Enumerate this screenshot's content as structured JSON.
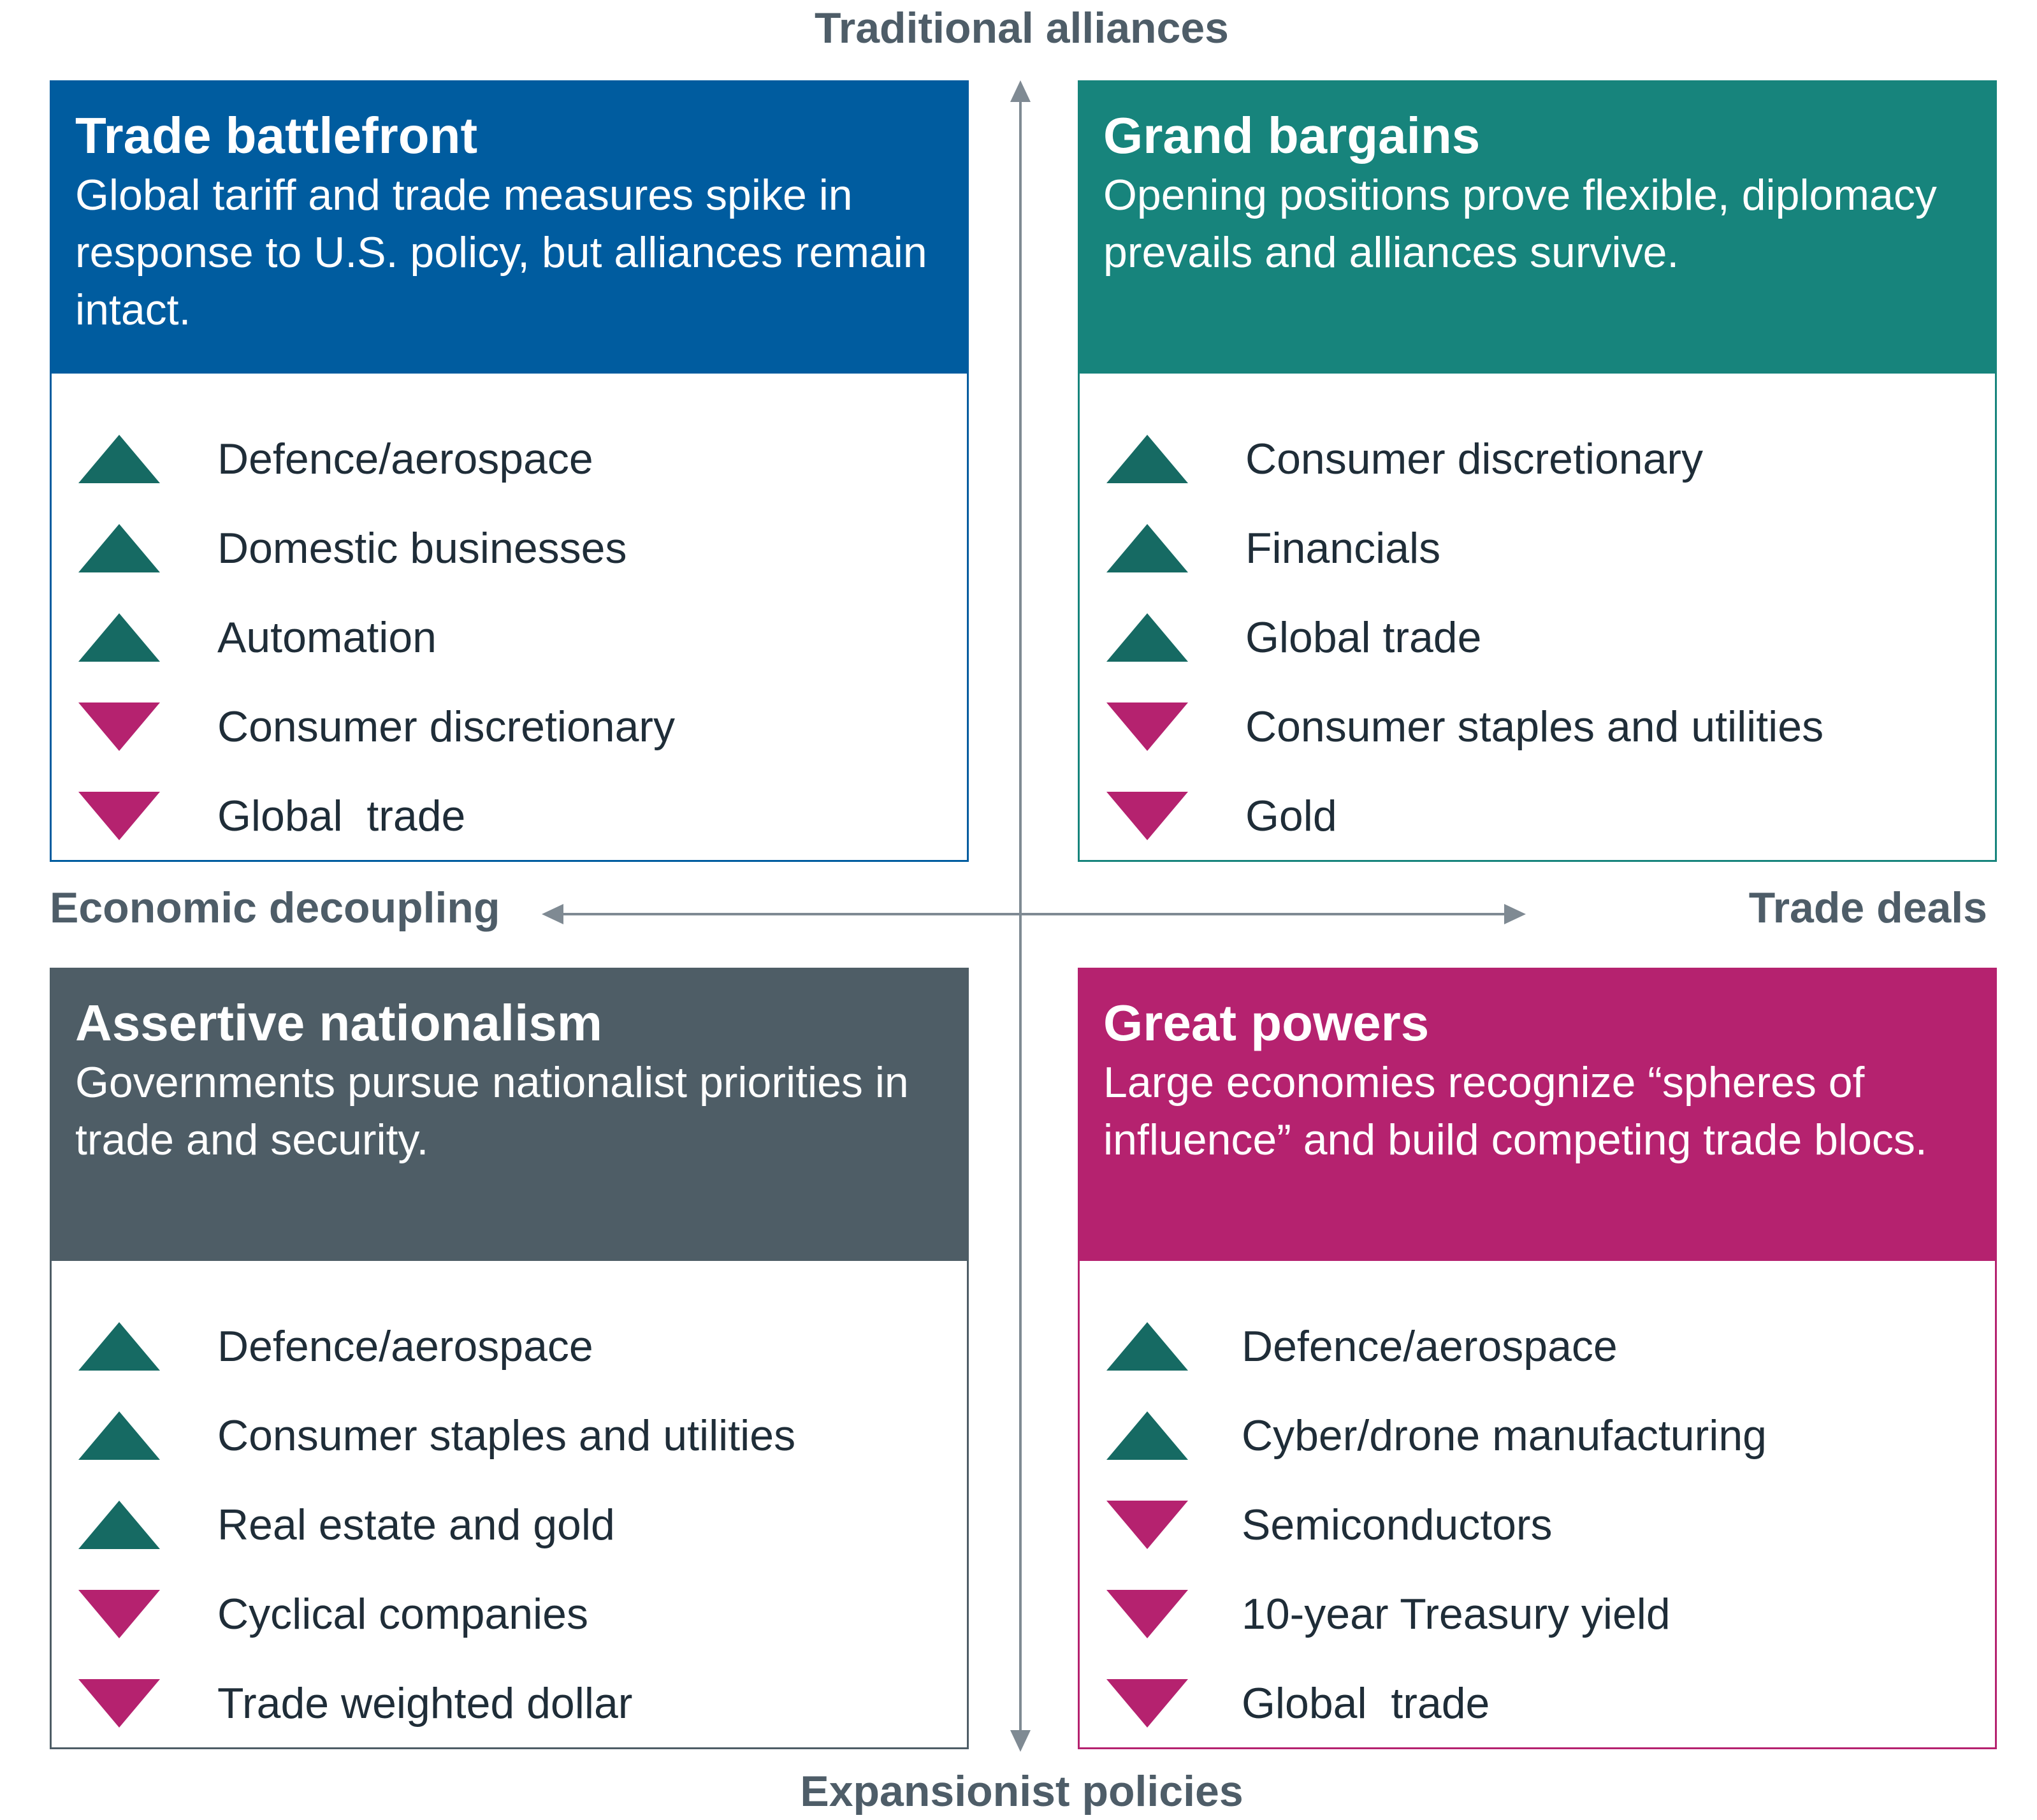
{
  "axes": {
    "top": "Traditional alliances",
    "bottom": "Expansionist policies",
    "left": "Economic decoupling",
    "right": "Trade deals",
    "line_color": "#7f8a93"
  },
  "colors": {
    "up": "#166a63",
    "down": "#b5226f"
  },
  "quadrants": {
    "top_left": {
      "title": "Trade battlefront",
      "description": "Global tariff and trade measures spike in response to U.S. policy, but alliances remain intact.",
      "color": "#005c9f",
      "items": [
        {
          "label": "Defence/aerospace",
          "direction": "up"
        },
        {
          "label": "Domestic businesses",
          "direction": "up"
        },
        {
          "label": "Automation",
          "direction": "up"
        },
        {
          "label": "Consumer discretionary",
          "direction": "down"
        },
        {
          "label": "Global  trade",
          "direction": "down"
        }
      ]
    },
    "top_right": {
      "title": "Grand bargains",
      "description": "Opening positions prove flexible, diplomacy prevails and alliances survive.",
      "color": "#17847c",
      "items": [
        {
          "label": "Consumer discretionary",
          "direction": "up"
        },
        {
          "label": "Financials",
          "direction": "up"
        },
        {
          "label": "Global trade",
          "direction": "up"
        },
        {
          "label": "Consumer staples and utilities",
          "direction": "down"
        },
        {
          "label": "Gold",
          "direction": "down"
        }
      ]
    },
    "bottom_left": {
      "title": "Assertive nationalism",
      "description": "Governments pursue nationalist priorities in trade and security.",
      "color": "#4e5d66",
      "items": [
        {
          "label": "Defence/aerospace",
          "direction": "up"
        },
        {
          "label": "Consumer staples and utilities",
          "direction": "up"
        },
        {
          "label": "Real estate and gold",
          "direction": "up"
        },
        {
          "label": "Cyclical companies",
          "direction": "down"
        },
        {
          "label": "Trade weighted dollar",
          "direction": "down"
        }
      ]
    },
    "bottom_right": {
      "title": "Great powers",
      "description": "Large economies recognize “spheres of influence” and build competing trade blocs.",
      "color": "#b5226f",
      "items": [
        {
          "label": "Defence/aerospace",
          "direction": "up"
        },
        {
          "label": "Cyber/drone manufacturing",
          "direction": "up"
        },
        {
          "label": "Semiconductors",
          "direction": "down"
        },
        {
          "label": "10-year Treasury yield",
          "direction": "down"
        },
        {
          "label": "Global  trade",
          "direction": "down"
        }
      ]
    }
  }
}
